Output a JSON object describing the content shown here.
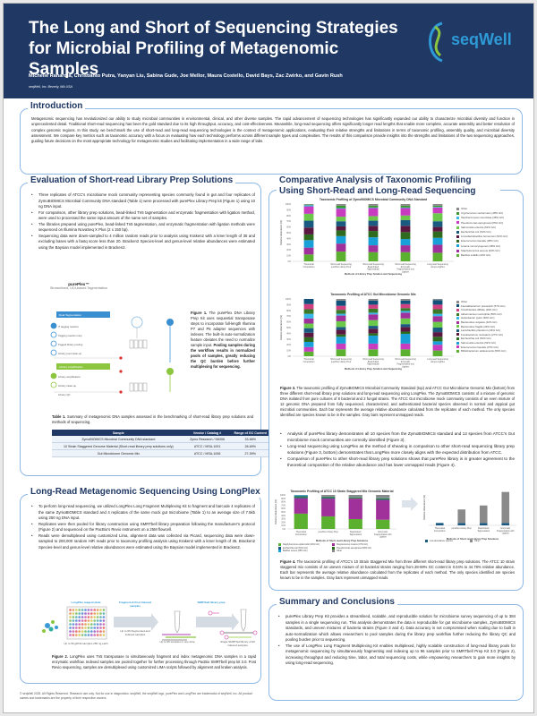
{
  "header": {
    "title": "The Long and Short of Sequencing Strategies for Microbial Profiling of Metagenomic Samples",
    "authors": "Michelle Rahardja, Christianto Putra, Yanyan Liu, Sabina Gude, Joe Mellor, Maura Costello, David Bays, Zac Zwirko, and Gavin Rush",
    "affiliation": "seqWell, Inc. Beverly, MA USA",
    "logo": "seqWell",
    "brand_color": "#1f3864",
    "accent_color": "#2e9ad6"
  },
  "intro": {
    "heading": "Introduction",
    "text": "Metagenomic sequencing has revolutionized our ability to study microbial communities in environmental, clinical, and other diverse samples. The rapid advancement of sequencing technologies has significantly expanded our ability to characterize microbial diversity and function in unprecedented detail. Traditional short-read sequencing has been the gold standard due to its high throughput, accuracy, and cost-effectiveness. Meanwhile, long-read sequencing offers significantly longer read lengths that enable more complete, accurate assembly and better resolution of complex genomic regions. In this study, we benchmark the use of short-read and long-read sequencing technologies in the context of metagenomic applications, evaluating their relative strengths and limitations in terms of taxonomic profiling, assembly quality, and microbial diversity assessment. We compare key metrics such as taxonomic accuracy with a focus on evaluating how each technology performs across different sample types and complexities. The results of this comparison provide insights into the strengths and limitations of the two sequencing approaches, guiding future decisions on the most appropriate technology for metagenomic studies and facilitating implementation in a wide range of labs."
  },
  "eval": {
    "heading": "Evaluation of Short-read Library Prep Solutions",
    "bullets": [
      "Three replicates of ATCC's microbiome mock community representing species commonly found in gut and four replicates of ZymoBIOMICS Microbial Community DNA standard (Table 1) were processed with purePlex Library Prep kit (Figure 1) using 10 ng DNA input.",
      "For comparison, other library prep solutions, bead-linked Tn5 tagmentation and enzymatic fragmentation with ligation method, were used to processed the same input amount of the same set of samples.",
      "The libraries prepared using purePlex, bead-linked Tn5 tagmentation, and enzymatic fragmentation with ligation methods were sequenced on Illumina NovaSeq X Plus (2 x 150 bp).",
      "Sequencing data were down-sampled to 4 million random reads prior to analysis using Kraken2 with a kmer length of 35 and excluding bases with a fastq score less than 20. Bracken2 Species-level and genus-level relative abundances were estimated using the Baysian model implemented in Bracken2."
    ],
    "fig1": {
      "title": "purePlex™",
      "subtitle": "Streamlined, UDI-based Tagmentation",
      "stage1": "Dual Tagmentation",
      "stage2": "Library Amplification",
      "steps": [
        "i7 tagging reaction",
        "Tagging reaction stop",
        "Tagged library pooling",
        "Library pool clean-up",
        "Library amplification",
        "Library clean-up",
        "Library QC"
      ],
      "caption_label": "Figure 1.",
      "caption": "The purePlex DNA Library Prep Kit uses sequential transposase steps to incorporate full-length Illumina P7 and P5 adapter sequences with indexes. The built-in auto-normalization feature obviates the need to normalize sample input.",
      "caption_bold": "Pooling samples during the workflow results in normalized pools of samples, greatly reducing the QC burden before further multiplexing for sequencing."
    },
    "table1": {
      "caption_label": "Table 1.",
      "caption": "Summary of metagenomic DNA samples assessed in the benchmarking of short-read library prep solutions and methods of sequencing.",
      "columns": [
        "Sample",
        "Vendor / Catalog #",
        "Range of GC Content"
      ],
      "rows": [
        [
          "ZymoBIOMICS Microbial Community DNA standard",
          "Zymo Research / D6306",
          "33-66%"
        ],
        [
          "10 Strain Staggered Genome Material (Short-read library prep solutions only)",
          "ATCC / MSA-1001",
          "28-69%"
        ],
        [
          "Gut Microbiome Genomic Mix",
          "ATCC / MSA-1006",
          "27-59%"
        ]
      ]
    }
  },
  "longread": {
    "heading": "Long-Read Metagenomic Sequencing Using LongPlex",
    "bullets": [
      "To perform long-read sequencing, we utilized LongPlex Long Fragment Multiplexing Kit to fragment and barcode 4 replicates of the same ZymoBIOMICS standard and 4 replicates of the same mock gut microbiome (Table 1) to an average size of 7.5kb using 250 ng DNA input.",
      "Replicates were then pooled for library construction using SMRTbell library preparation following the manufacturer's protocol (Figure 2) and sequenced on the PacBio's Revio instrument on a 25M flowcell.",
      "Reads were demultiplexed using customized Lima, alignment data was collected via Picard, sequencing data were down-sampled to 200,000 random HiFi reads prior to taxonomy profiling analysis using Kraken2 with a kmer length of 35. Bracken2 Species-level and genus-level relative abundances were estimated using the Baysian model implemented in Bracken2."
    ],
    "fig2": {
      "plate_label": "LongPlex reagent plate",
      "plate_sub": "Up to 96 gDNA samples 250 ng each",
      "arrow1": "Fragment & Pool indexed samples",
      "arrow1_sub": "Up to 96 fragmented and indexed samples",
      "pool_label": "Up to 96 samples in one tube",
      "smrt_label": "SMRTbell library prep",
      "final_label": "Single SMRTbell library of 96 indexed samples",
      "caption_label": "Figure 2.",
      "caption": "LongPlex uses Tn5 transposase to simultaneously fragment and index metagenomic DNA samples in a rapid enzymatic workflow. Indexed samples are pooled together for further processing through PacBio SMRTbell prep kit 3.0. Post Revio sequencing, samples are demultiplexed using customized LIMA scripts followed by alignment and kraken analysis."
    }
  },
  "footer": "© seqWell 2025. All Rights Reserved. Research use only. Not for use in diagnostics. seqWell, the seqWell logo, purePlex and LongPlex are trademarks of seqWell, Inc. All product names and trademarks are the property of their respective owners.",
  "compare": {
    "heading": "Comparative Analysis of Taxonomic Profiling Using Short-Read and Long-Read Sequencing",
    "fig3_caption_label": "Figure 3.",
    "fig3_caption": "The taxonomic profiling of ZymoBIOMICS Microbial Community Standard (top) and ATCC Gut Microbiome Genomic Mix (bottom) from three different short-read library prep solutions and long-read sequencing using LongPlex. The ZymoBIOMICS consists of a mixture of genomic DNA isolated from pure cultures of 8 bacterial and 2 fungal strains. The ATCC Gut microbiome mock community consists of an even mixture of 12 genomic DNA prepared from fully sequenced, characterized, and authenticated bacterial species observed in normal and atypical gut microbial communities. Each bar represents the average relative abundance calculated from the replicates of each method. The only species identified are species known to be in the samples. Gray bars represent unmapped reads.",
    "bullets": [
      "Analysis of purePlex library demonstrates all 10 species from the ZymoBIOMICS standard and 12 species from ATCC's Gut microbiome mock communities are correctly identified (Figure 3).",
      "Long-read sequencing using LongPlex as the method of shearing in comparison to other short-read sequencing library prep solutions (Figure 3, bottom) demonstrates that LongPlex more closely aligns with the expected distribution from ATCC.",
      "Comparison of purePlex to other short-read library prep solutions shows that purePlex library is in greater agreement to the theoretical composition of the relative abundance and has lower unmapped reads (Figure 4)."
    ],
    "fig4_caption_label": "Figure 4.",
    "fig4_caption": "The taxonomic profiling of ATCC's 10 Strain Staggered Mix from three different short-read library prep solutions. The ATCC 10 strain staggered mix consists of an uneven mixture of 10 bacterial strains ranging from 28-69% GC content in 0.04% to 44.78% relative abundance. Each bar represents the average relative abundance calculated from the replicates of each method. The only species identified are species known to be in the samples. Gray bars represent unmapped reads."
  },
  "summary": {
    "heading": "Summary and Conclusions",
    "bullets": [
      "purePlex Library Prep Kit provides a streamlined, scalable, and reproducible solution for microbiome survey sequencing of up to 384 samples in a single sequencing run. This analysis demonstrates the data is reproducible for gut microbiome samples, ZymoBIOMICS standards, and uneven mixtures of bacteria strains (Figure 3 and 4). Data accuracy is not compromised when scaling due to built in auto-normalization which allows researchers to pool samples during the library prep workflow further reducing the library QC and pooling burden prior to sequencing.",
      "The use of LongPlex Long Fragment Multiplexing Kit enables multiplexed, highly scalable construction of long-read library pools for metagenomic sequencing by simultaneously fragmenting and indexing up to 96 samples prior to SMRTbell Prep Kit 3.0 (Figure 2), increasing throughput and reducing time, labor, and total sequencing costs, while empowering researchers to gain more insights by using long-read sequencing."
    ]
  },
  "chart_data": [
    {
      "type": "bar",
      "stacked": true,
      "title": "Taxonomic Profiling of ZymoBIOMICS Microbial Community DNA Standard",
      "xlabel": "Methods of Library Prep Solution and Sequencing",
      "ylabel": "Relative Abundance (%)",
      "ylim": [
        0,
        100
      ],
      "yticks": [
        "0%",
        "10%",
        "20%",
        "30%",
        "40%",
        "50%",
        "60%",
        "70%",
        "80%",
        "90%",
        "100%"
      ],
      "legend": "right",
      "categories": [
        "Theoretical Composition",
        "Short-read Sequencing purePlex Library Prep",
        "Short-read Sequencing Bead-linked Tagmentation",
        "Short-read Sequencing Enzymatic Fragmentation and Ligation",
        "Long-read Sequencing using LongPlex"
      ],
      "series": [
        {
          "name": "Bacillus subtilis (43% GC)",
          "color": "#5cb030",
          "values": [
            12,
            17,
            16,
            16,
            15
          ]
        },
        {
          "name": "Staphylococcus aureus (33% GC)",
          "color": "#a0309a",
          "values": [
            12,
            14,
            12,
            12,
            14
          ]
        },
        {
          "name": "Listeria monocytogenes (38% GC)",
          "color": "#1aa0d8",
          "values": [
            13,
            13,
            14,
            11,
            12
          ]
        },
        {
          "name": "Enterococcus faecalis (38% GC)",
          "color": "#2e6b1e",
          "values": [
            10,
            10,
            11,
            12,
            11
          ]
        },
        {
          "name": "Limosilactobacillus fermentum (52% GC)",
          "color": "#5a1840",
          "values": [
            12,
            7,
            9,
            11,
            8
          ]
        },
        {
          "name": "Escherichia coli (51% GC)",
          "color": "#1a5a80",
          "values": [
            12,
            9,
            9,
            10,
            10
          ]
        },
        {
          "name": "Salmonella enterica (52% GC)",
          "color": "#6cc84a",
          "values": [
            12,
            8,
            8,
            8,
            14
          ]
        },
        {
          "name": "Pseudomonas aeruginosa (66% GC)",
          "color": "#c83cc0",
          "values": [
            13,
            14,
            14,
            13,
            10
          ]
        },
        {
          "name": "Saccharomyces cerevisiae (38% GC)",
          "color": "#38b8e8",
          "values": [
            2,
            1,
            1,
            1,
            1
          ]
        },
        {
          "name": "Cryptococcus neoformans (48% GC)",
          "color": "#3a9a30",
          "values": [
            1,
            4,
            3,
            3,
            2
          ]
        },
        {
          "name": "Other",
          "color": "#8a8a8a",
          "values": [
            1,
            3,
            3,
            3,
            3
          ]
        }
      ]
    },
    {
      "type": "bar",
      "stacked": true,
      "title": "Taxonomic Profiling of ATCC Gut Microbiome Genomic Mix",
      "xlabel": "Methods of Library Prep Solution and Sequencing",
      "ylabel": "Relative Abundance (%)",
      "ylim": [
        0,
        100
      ],
      "yticks": [
        "0%",
        "10%",
        "20%",
        "30%",
        "40%",
        "50%",
        "60%",
        "70%",
        "80%",
        "90%",
        "100%"
      ],
      "legend": "right",
      "categories": [
        "Theoretical Composition",
        "Short-read Sequencing purePlex Library Prep",
        "Short-read Sequencing Bead-linked Tagmentation",
        "Short-read Sequencing Enzymatic Fragmentation and Ligation",
        "Long-read Sequencing using LongPlex"
      ],
      "series": [
        {
          "name": "Bifidobacterium adolescentis (59% GC)",
          "color": "#5cb030",
          "values": [
            8,
            12,
            12,
            12,
            10
          ]
        },
        {
          "name": "Enterococcus faecalis (37% GC)",
          "color": "#c83cc0",
          "values": [
            8,
            10,
            10,
            10,
            10
          ]
        },
        {
          "name": "Salmonella enterica (52% GC)",
          "color": "#1aa0d8",
          "values": [
            9,
            12,
            14,
            17,
            6
          ]
        },
        {
          "name": "Escherichia coli (51% GC)",
          "color": "#2e6b1e",
          "values": [
            8,
            4,
            4,
            4,
            8
          ]
        },
        {
          "name": "Fusobacterium nucleatum (27% GC)",
          "color": "#5a1840",
          "values": [
            8,
            8,
            8,
            8,
            8
          ]
        },
        {
          "name": "Lactobacillus plantarum (44% GC)",
          "color": "#1a5a80",
          "values": [
            8,
            5,
            5,
            5,
            8
          ]
        },
        {
          "name": "Bacteroides fragilis (43% GC)",
          "color": "#6cc84a",
          "values": [
            8,
            10,
            10,
            10,
            10
          ]
        },
        {
          "name": "Bacteroides vulgatus (42% GC)",
          "color": "#a0309a",
          "values": [
            9,
            10,
            10,
            10,
            10
          ]
        },
        {
          "name": "Helicobacter pylori (39% GC)",
          "color": "#38b8e8",
          "values": [
            8,
            3,
            3,
            3,
            4
          ]
        },
        {
          "name": "Akkermansia muciniphila (55% GC)",
          "color": "#3a7a28",
          "values": [
            8,
            7,
            7,
            5,
            8
          ]
        },
        {
          "name": "Clostridioides difficile (29% GC)",
          "color": "#d04080",
          "values": [
            9,
            7,
            7,
            7,
            8
          ]
        },
        {
          "name": "Faecalibacterium prausnitzii (57% GC)",
          "color": "#10507a",
          "values": [
            9,
            9,
            7,
            6,
            8
          ]
        },
        {
          "name": "Other",
          "color": "#8a8a8a",
          "values": [
            0,
            3,
            3,
            3,
            2
          ]
        }
      ]
    },
    {
      "type": "bar",
      "stacked": true,
      "title": "Taxonomic Profiling of ATCC 10 Strain Staggered Mix Genomic Material",
      "xlabel": "Methods of Short-read Library Prep Solutions",
      "ylabel": "Relative Abundance (%)",
      "ylim": [
        0,
        100
      ],
      "yticks": [
        "0%",
        "10%",
        "20%",
        "30%",
        "40%",
        "50%",
        "60%",
        "70%",
        "80%",
        "90%",
        "100%"
      ],
      "legend": "bottom",
      "categories": [
        "Theoretical Composition",
        "purePlex Library Prep",
        "Bead-linked Tagmentation",
        "Enzymatic Fragmentation with Ligation"
      ],
      "series": [
        {
          "name": "Staphylococcus epidermidis (32% GC)",
          "color": "#5cb030",
          "values": [
            45,
            37,
            29,
            27
          ]
        },
        {
          "name": "Streptococcus mutans (37% GC)",
          "color": "#a0309a",
          "values": [
            45,
            52,
            60,
            58
          ]
        },
        {
          "name": "Escherichia coli (51% GC)",
          "color": "#1a5a80",
          "values": [
            3,
            2,
            1,
            2
          ]
        },
        {
          "name": "Pseudomonas aeruginosa (66% GC)",
          "color": "#2e6b1e",
          "values": [
            3,
            3,
            3,
            3
          ]
        },
        {
          "name": "Bacillus cereus (35% GC)",
          "color": "#1aa0d8",
          "values": [
            3,
            1,
            1,
            1
          ]
        },
        {
          "name": "Other",
          "color": "#8a8a8a",
          "values": [
            1,
            5,
            6,
            9
          ]
        }
      ]
    },
    {
      "type": "bar",
      "stacked": true,
      "title": "",
      "xlabel": "Methods of Short-read Library Prep Solutions",
      "ylabel": "Relative Abundance (%)",
      "legend": "bottom",
      "categories": [
        "Theoretical Composition",
        "purePlex Library Prep",
        "Bead-linked Tagmentation",
        "Enzymatic Fragmentation with Ligation"
      ],
      "series": [
        {
          "name": "Low-abundance species",
          "color": "#1a5a80",
          "values": [
            1.2,
            1.2,
            1.2,
            1.2
          ]
        },
        {
          "name": "Other",
          "color": "#8a8a8a",
          "values": [
            0,
            6.8,
            8.8,
            15.6
          ]
        }
      ]
    }
  ]
}
